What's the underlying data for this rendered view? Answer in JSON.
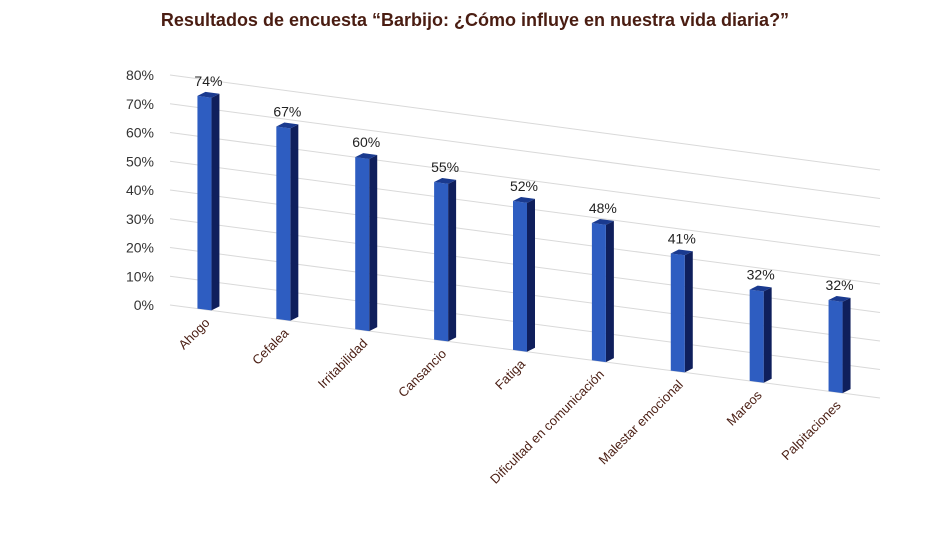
{
  "chart_data": {
    "type": "bar",
    "title": "Resultados de encuesta “Barbijo: ¿Cómo influye en nuestra vida diaria?”",
    "categories": [
      "Ahogo",
      "Cefalea",
      "Irritabilidad",
      "Cansancio",
      "Fatiga",
      "Dificultad en comunicación",
      "Malestar emocional",
      "Mareos",
      "Palpitaciones"
    ],
    "values": [
      74,
      67,
      60,
      55,
      52,
      48,
      41,
      32,
      32
    ],
    "data_labels": [
      "74%",
      "67%",
      "60%",
      "55%",
      "52%",
      "48%",
      "41%",
      "32%",
      "32%"
    ],
    "ytick_labels": [
      "0%",
      "10%",
      "20%",
      "30%",
      "40%",
      "50%",
      "60%",
      "70%",
      "80%"
    ],
    "ylim": [
      0,
      80
    ],
    "grid": true,
    "bar_color": "#2e5dc1",
    "bar_side_color": "#0f1f5c",
    "bar_top_color": "#1a3a8f",
    "title_color": "#4a1d12"
  }
}
